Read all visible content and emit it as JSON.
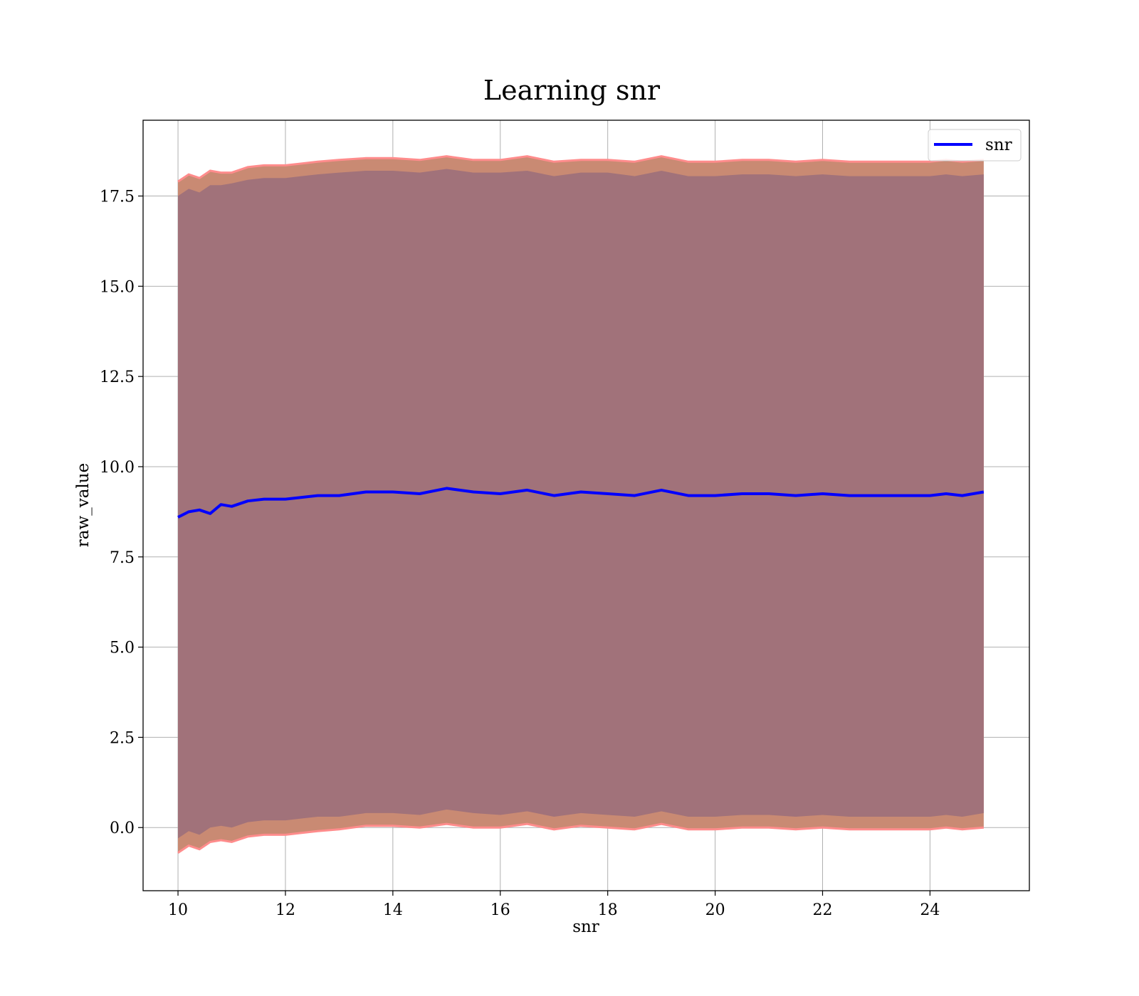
{
  "chart_data": {
    "type": "line",
    "title": "Learning snr",
    "xlabel": "snr",
    "ylabel": "raw_value",
    "xlim": [
      9.35,
      25.85
    ],
    "ylim": [
      -1.75,
      19.6
    ],
    "xticks": [
      10,
      12,
      14,
      16,
      18,
      20,
      22,
      24
    ],
    "xtick_labels": [
      "10",
      "12",
      "14",
      "16",
      "18",
      "20",
      "22",
      "24"
    ],
    "yticks": [
      0.0,
      2.5,
      5.0,
      7.5,
      10.0,
      12.5,
      15.0,
      17.5
    ],
    "ytick_labels": [
      "0.0",
      "2.5",
      "5.0",
      "7.5",
      "10.0",
      "12.5",
      "15.0",
      "17.5"
    ],
    "grid": true,
    "legend": {
      "position": "top-right",
      "entries": [
        "snr"
      ]
    },
    "colors": {
      "line": "#0000ff",
      "inner_band": "#a1727a",
      "outer_band": "#c98a73",
      "outer_edge": "#ff8c8c",
      "grid": "#b0b0b0"
    },
    "series": [
      {
        "name": "snr",
        "x": [
          10.0,
          10.2,
          10.4,
          10.6,
          10.8,
          11.0,
          11.3,
          11.6,
          12.0,
          12.3,
          12.6,
          13.0,
          13.5,
          14.0,
          14.5,
          15.0,
          15.5,
          16.0,
          16.5,
          17.0,
          17.5,
          18.0,
          18.5,
          19.0,
          19.5,
          20.0,
          20.5,
          21.0,
          21.5,
          22.0,
          22.5,
          23.0,
          23.5,
          24.0,
          24.3,
          24.6,
          25.0
        ],
        "y": [
          8.6,
          8.75,
          8.8,
          8.7,
          8.95,
          8.9,
          9.05,
          9.1,
          9.1,
          9.15,
          9.2,
          9.2,
          9.3,
          9.3,
          9.25,
          9.4,
          9.3,
          9.25,
          9.35,
          9.2,
          9.3,
          9.25,
          9.2,
          9.35,
          9.2,
          9.2,
          9.25,
          9.25,
          9.2,
          9.25,
          9.2,
          9.2,
          9.2,
          9.2,
          9.25,
          9.2,
          9.3
        ]
      }
    ],
    "bands": {
      "x": [
        10.0,
        10.2,
        10.4,
        10.6,
        10.8,
        11.0,
        11.3,
        11.6,
        12.0,
        12.3,
        12.6,
        13.0,
        13.5,
        14.0,
        14.5,
        15.0,
        15.5,
        16.0,
        16.5,
        17.0,
        17.5,
        18.0,
        18.5,
        19.0,
        19.5,
        20.0,
        20.5,
        21.0,
        21.5,
        22.0,
        22.5,
        23.0,
        23.5,
        24.0,
        24.3,
        24.6,
        25.0
      ],
      "outer_upper": [
        17.9,
        18.1,
        18.0,
        18.2,
        18.15,
        18.15,
        18.3,
        18.35,
        18.35,
        18.4,
        18.45,
        18.5,
        18.55,
        18.55,
        18.5,
        18.6,
        18.5,
        18.5,
        18.6,
        18.45,
        18.5,
        18.5,
        18.45,
        18.6,
        18.45,
        18.45,
        18.5,
        18.5,
        18.45,
        18.5,
        18.45,
        18.45,
        18.45,
        18.45,
        18.5,
        18.45,
        18.5
      ],
      "inner_upper": [
        17.5,
        17.7,
        17.6,
        17.8,
        17.8,
        17.85,
        17.95,
        18.0,
        18.0,
        18.05,
        18.1,
        18.15,
        18.2,
        18.2,
        18.15,
        18.25,
        18.15,
        18.15,
        18.2,
        18.05,
        18.15,
        18.15,
        18.05,
        18.2,
        18.05,
        18.05,
        18.1,
        18.1,
        18.05,
        18.1,
        18.05,
        18.05,
        18.05,
        18.05,
        18.1,
        18.05,
        18.1
      ],
      "inner_lower": [
        -0.3,
        -0.1,
        -0.2,
        0.0,
        0.05,
        0.0,
        0.15,
        0.2,
        0.2,
        0.25,
        0.3,
        0.3,
        0.4,
        0.4,
        0.35,
        0.5,
        0.4,
        0.35,
        0.45,
        0.3,
        0.4,
        0.35,
        0.3,
        0.45,
        0.3,
        0.3,
        0.35,
        0.35,
        0.3,
        0.35,
        0.3,
        0.3,
        0.3,
        0.3,
        0.35,
        0.3,
        0.4
      ],
      "outer_lower": [
        -0.7,
        -0.5,
        -0.6,
        -0.4,
        -0.35,
        -0.4,
        -0.25,
        -0.2,
        -0.2,
        -0.15,
        -0.1,
        -0.05,
        0.05,
        0.05,
        0.0,
        0.1,
        0.0,
        0.0,
        0.1,
        -0.05,
        0.05,
        0.0,
        -0.05,
        0.1,
        -0.05,
        -0.05,
        0.0,
        0.0,
        -0.05,
        0.0,
        -0.05,
        -0.05,
        -0.05,
        -0.05,
        0.0,
        -0.05,
        0.0
      ]
    }
  }
}
